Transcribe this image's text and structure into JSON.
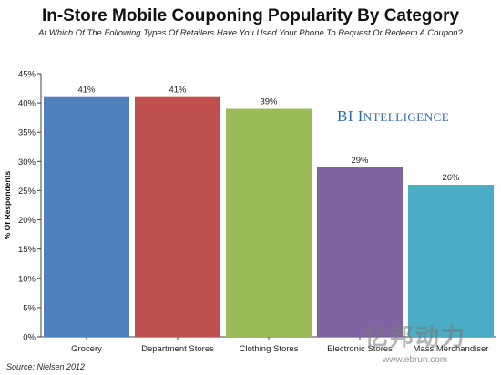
{
  "chart_data": {
    "type": "bar",
    "title": "In-Store Mobile Couponing Popularity By Category",
    "subtitle": "At Which Of The Following Types Of Retailers Have You Used Your Phone To Request Or Redeem A Coupon?",
    "xlabel": "",
    "ylabel": "% Of Respondents",
    "ylim": [
      0,
      45
    ],
    "yticks": [
      0,
      5,
      10,
      15,
      20,
      25,
      30,
      35,
      40,
      45
    ],
    "ytick_suffix": "%",
    "grid": false,
    "categories": [
      "Grocery",
      "Department Stores",
      "Clothing Stores",
      "Electronic Stores",
      "Mass Merchandiser"
    ],
    "values": [
      41,
      41,
      39,
      29,
      26
    ],
    "data_labels": [
      "41%",
      "41%",
      "39%",
      "29%",
      "26%"
    ],
    "colors": [
      "#4f81bd",
      "#c0504d",
      "#9bbb59",
      "#8064a2",
      "#4bacc6"
    ]
  },
  "annotations": {
    "source": "Source: Nielsen 2012",
    "watermark_bi_first": "BI ",
    "watermark_bi_i": "I",
    "watermark_bi_rest": "NTELLIGENCE",
    "watermark_cn": "亿邦动力",
    "watermark_url": "www.ebrun.com"
  }
}
